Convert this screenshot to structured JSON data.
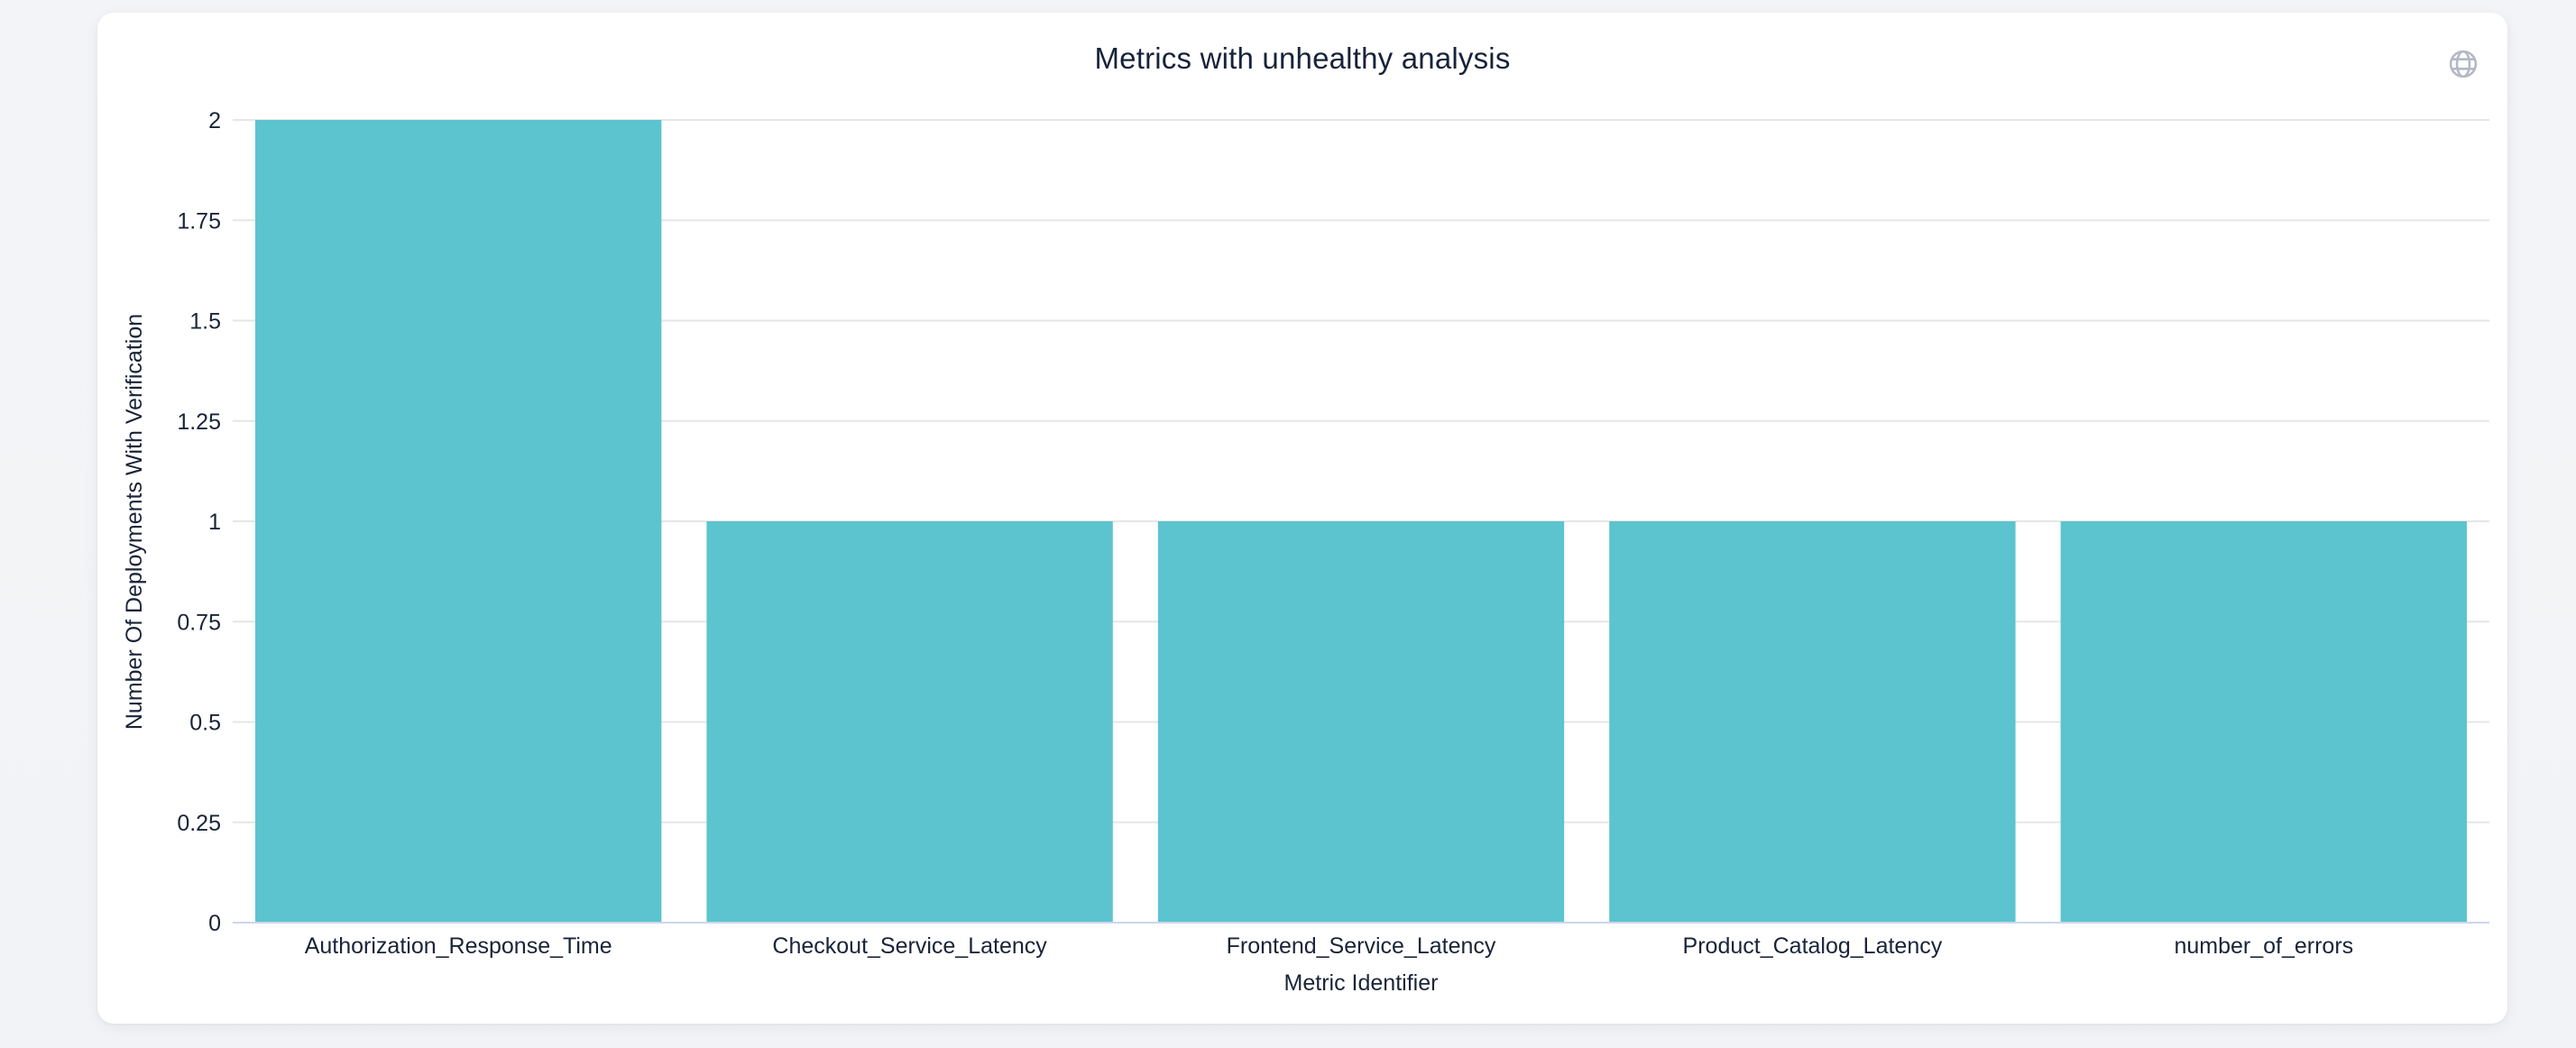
{
  "header": {
    "menu_icon": "globe-icon"
  },
  "chart_data": {
    "type": "bar",
    "title": "Metrics with unhealthy analysis",
    "categories": [
      "Authorization_Response_Time",
      "Checkout_Service_Latency",
      "Frontend_Service_Latency",
      "Product_Catalog_Latency",
      "number_of_errors"
    ],
    "values": [
      2,
      1,
      1,
      1,
      1
    ],
    "xlabel": "Metric Identifier",
    "ylabel": "Number Of Deployments With Verification",
    "ylim": [
      0,
      2
    ],
    "ytick_step": 0.25,
    "yticks": [
      0,
      0.25,
      0.5,
      0.75,
      1,
      1.25,
      1.5,
      1.75,
      2
    ],
    "ytick_labels": [
      "0",
      "0.25",
      "0.5",
      "0.75",
      "1",
      "1.25",
      "1.5",
      "1.75",
      "2"
    ],
    "grid": true,
    "legend": false,
    "colors": {
      "bar": "#5bc4cf",
      "grid": "#e6e6e6",
      "axis_line": "#ccd6eb",
      "text": "#1a2438",
      "title_text": "#17233a",
      "icon": "#b3b9c4",
      "card_bg": "#ffffff",
      "page_bg": "#f2f4f6"
    }
  }
}
